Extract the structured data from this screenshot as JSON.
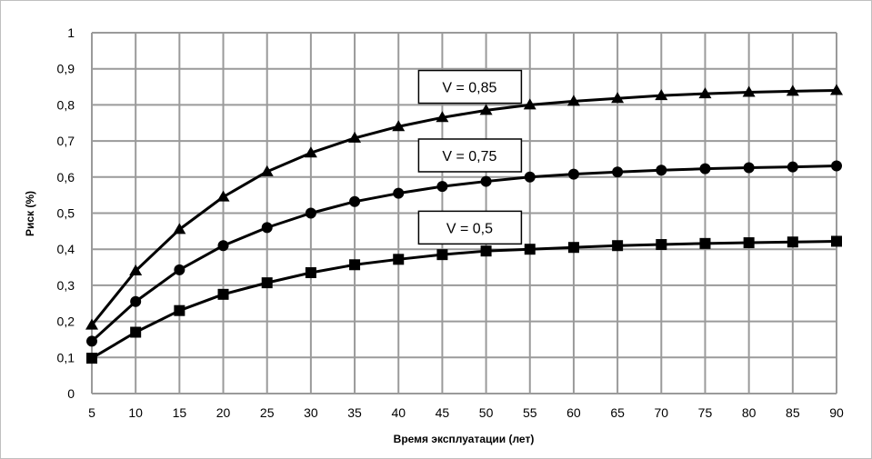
{
  "chart_data": {
    "type": "line",
    "title": "",
    "xlabel": "Время эксплуатации (лет)",
    "ylabel": "Риск (%)",
    "xlim": [
      5,
      90
    ],
    "ylim": [
      0,
      1
    ],
    "grid": true,
    "x": [
      5,
      10,
      15,
      20,
      25,
      30,
      35,
      40,
      45,
      50,
      55,
      60,
      65,
      70,
      75,
      80,
      85,
      90
    ],
    "x_tick_labels": [
      "5",
      "10",
      "15",
      "20",
      "25",
      "30",
      "35",
      "40",
      "45",
      "50",
      "55",
      "60",
      "65",
      "70",
      "75",
      "80",
      "85",
      "90"
    ],
    "y_tick_values": [
      0,
      0.1,
      0.2,
      0.3,
      0.4,
      0.5,
      0.6,
      0.7,
      0.8,
      0.9,
      1
    ],
    "y_tick_labels": [
      "0",
      "0,1",
      "0,2",
      "0,3",
      "0,4",
      "0,5",
      "0,6",
      "0,7",
      "0,8",
      "0,9",
      "1"
    ],
    "series": [
      {
        "name": "V = 0,85",
        "marker": "triangle",
        "label_anchor": [
          45,
          0.85
        ],
        "values": [
          0.19,
          0.34,
          0.455,
          0.545,
          0.615,
          0.667,
          0.708,
          0.74,
          0.765,
          0.785,
          0.8,
          0.81,
          0.818,
          0.826,
          0.831,
          0.835,
          0.838,
          0.84
        ]
      },
      {
        "name": "V = 0,75",
        "marker": "circle",
        "label_anchor": [
          45,
          0.66
        ],
        "values": [
          0.145,
          0.255,
          0.343,
          0.41,
          0.46,
          0.5,
          0.532,
          0.555,
          0.574,
          0.588,
          0.6,
          0.608,
          0.614,
          0.619,
          0.623,
          0.626,
          0.628,
          0.631
        ]
      },
      {
        "name": "V = 0,5",
        "marker": "square",
        "label_anchor": [
          45,
          0.46
        ],
        "values": [
          0.098,
          0.17,
          0.23,
          0.275,
          0.307,
          0.335,
          0.357,
          0.372,
          0.385,
          0.395,
          0.4,
          0.405,
          0.41,
          0.413,
          0.416,
          0.418,
          0.42,
          0.422
        ]
      }
    ]
  }
}
